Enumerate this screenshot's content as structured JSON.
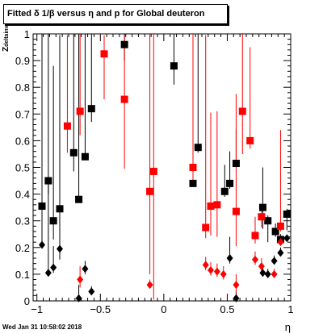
{
  "chart_data": {
    "type": "scatter",
    "title": "Fitted δ 1/β versus η and p for Global deuteron",
    "xlabel": "η",
    "ylabel": "Z",
    "ylabel_sub": "deltainv",
    "xlim": [
      -1.03,
      1.0
    ],
    "ylim": [
      0,
      1
    ],
    "xticks": [
      -1,
      -0.5,
      0,
      0.5,
      1
    ],
    "xtick_labels": [
      "−1",
      "−0.5",
      "0",
      "0.5",
      "1"
    ],
    "yticks": [
      0,
      0.1,
      0.2,
      0.3,
      0.4,
      0.5,
      0.6,
      0.7,
      0.8,
      0.9,
      1
    ],
    "ytick_labels": [
      "0",
      "0.1",
      "0.2",
      "0.3",
      "0.4",
      "0.5",
      "0.6",
      "0.7",
      "0.8",
      "0.9",
      "1"
    ],
    "grid": false,
    "series": [
      {
        "marker": "square",
        "color": "#000000",
        "points": [
          {
            "x": -0.96,
            "y": 0.355,
            "elo": 0.01,
            "ehi": 0.99
          },
          {
            "x": -0.91,
            "y": 0.45,
            "elo": 0.05,
            "ehi": 0.95
          },
          {
            "x": -0.87,
            "y": 0.3,
            "elo": 0.07,
            "ehi": 0.58
          },
          {
            "x": -0.82,
            "y": 0.345,
            "elo": 0.11,
            "ehi": 0.65
          },
          {
            "x": -0.71,
            "y": 0.555,
            "elo": 0.07,
            "ehi": 0.45
          },
          {
            "x": -0.67,
            "y": 0.38,
            "elo": 0.0,
            "ehi": 0.62
          },
          {
            "x": -0.62,
            "y": 0.54,
            "elo": 0.01,
            "ehi": 0.46
          },
          {
            "x": -0.57,
            "y": 0.72,
            "elo": 0.05,
            "ehi": 0.28
          },
          {
            "x": -0.31,
            "y": 0.96,
            "elo": 0.06,
            "ehi": 0.04
          },
          {
            "x": 0.08,
            "y": 0.88,
            "elo": 0.07,
            "ehi": 0.12
          },
          {
            "x": 0.23,
            "y": 0.44,
            "elo": 0.0,
            "ehi": 0.56
          },
          {
            "x": 0.27,
            "y": 0.575,
            "elo": 0.02,
            "ehi": 0.43
          },
          {
            "x": 0.48,
            "y": 0.41,
            "elo": 0.02,
            "ehi": 0.1
          },
          {
            "x": 0.52,
            "y": 0.44,
            "elo": 0.02,
            "ehi": 0.12
          },
          {
            "x": 0.57,
            "y": 0.515,
            "elo": 0.0,
            "ehi": 0.13
          },
          {
            "x": 0.78,
            "y": 0.35,
            "elo": 0.08,
            "ehi": 0.15
          },
          {
            "x": 0.82,
            "y": 0.3,
            "elo": 0.08,
            "ehi": 0.02
          },
          {
            "x": 0.88,
            "y": 0.26,
            "elo": 0.02,
            "ehi": 0.03
          },
          {
            "x": 0.92,
            "y": 0.23,
            "elo": 0.01,
            "ehi": 0.02
          },
          {
            "x": 0.97,
            "y": 0.325,
            "elo": 0.06,
            "ehi": 0.02
          }
        ]
      },
      {
        "marker": "square",
        "color": "#ff0000",
        "points": [
          {
            "x": -0.76,
            "y": 0.655,
            "elo": 0.1,
            "ehi": 0.34
          },
          {
            "x": -0.66,
            "y": 0.71,
            "elo": 0.09,
            "ehi": 0.29
          },
          {
            "x": -0.47,
            "y": 0.925,
            "elo": 0.17,
            "ehi": 0.07
          },
          {
            "x": -0.31,
            "y": 0.755,
            "elo": 0.26,
            "ehi": 0.24
          },
          {
            "x": -0.11,
            "y": 0.41,
            "elo": 0.31,
            "ehi": 0.59
          },
          {
            "x": -0.08,
            "y": 0.485,
            "elo": 0.48,
            "ehi": 0.52
          },
          {
            "x": 0.23,
            "y": 0.5,
            "elo": 0.05,
            "ehi": 0.5
          },
          {
            "x": 0.33,
            "y": 0.275,
            "elo": 0.04,
            "ehi": 0.72
          },
          {
            "x": 0.37,
            "y": 0.355,
            "elo": 0.11,
            "ehi": 0.35
          },
          {
            "x": 0.42,
            "y": 0.36,
            "elo": 0.12,
            "ehi": 0.35
          },
          {
            "x": 0.57,
            "y": 0.335,
            "elo": 0.13,
            "ehi": 0.44
          },
          {
            "x": 0.62,
            "y": 0.71,
            "elo": 0.16,
            "ehi": 0.29
          },
          {
            "x": 0.68,
            "y": 0.6,
            "elo": 0.03,
            "ehi": 0.35
          },
          {
            "x": 0.72,
            "y": 0.245,
            "elo": 0.03,
            "ehi": 0.07
          },
          {
            "x": 0.77,
            "y": 0.315,
            "elo": 0.04,
            "ehi": 0.03
          },
          {
            "x": 0.92,
            "y": 0.28,
            "elo": 0.02,
            "ehi": 0.36
          }
        ]
      },
      {
        "marker": "diamond",
        "color": "#000000",
        "points": [
          {
            "x": -0.96,
            "y": 0.21,
            "elo": 0.01,
            "ehi": 0.79
          },
          {
            "x": -0.91,
            "y": 0.105,
            "elo": 0.01,
            "ehi": 0.34
          },
          {
            "x": -0.87,
            "y": 0.125,
            "elo": 0.02,
            "ehi": 0.08
          },
          {
            "x": -0.82,
            "y": 0.195,
            "elo": 0.04,
            "ehi": 0.14
          },
          {
            "x": -0.67,
            "y": 0.01,
            "elo": 0.01,
            "ehi": 0.05
          },
          {
            "x": -0.62,
            "y": 0.12,
            "elo": 0.02,
            "ehi": 0.03
          },
          {
            "x": -0.57,
            "y": 0.035,
            "elo": 0.01,
            "ehi": 0.02
          },
          {
            "x": 0.52,
            "y": 0.16,
            "elo": 0.02,
            "ehi": 0.08
          },
          {
            "x": 0.57,
            "y": 0.01,
            "elo": 0.01,
            "ehi": 0.03
          },
          {
            "x": 0.78,
            "y": 0.105,
            "elo": 0.01,
            "ehi": 0.02
          },
          {
            "x": 0.82,
            "y": 0.1,
            "elo": 0.01,
            "ehi": 0.02
          },
          {
            "x": 0.87,
            "y": 0.15,
            "elo": 0.01,
            "ehi": 0.02
          },
          {
            "x": 0.92,
            "y": 0.18,
            "elo": 0.01,
            "ehi": 0.02
          },
          {
            "x": 0.97,
            "y": 0.235,
            "elo": 0.01,
            "ehi": 0.01
          }
        ]
      },
      {
        "marker": "diamond",
        "color": "#ff0000",
        "points": [
          {
            "x": -0.66,
            "y": 0.08,
            "elo": 0.03,
            "ehi": 0.05
          },
          {
            "x": -0.11,
            "y": 0.06,
            "elo": 0.01,
            "ehi": 0.02
          },
          {
            "x": 0.33,
            "y": 0.135,
            "elo": 0.02,
            "ehi": 0.03
          },
          {
            "x": 0.37,
            "y": 0.115,
            "elo": 0.02,
            "ehi": 0.03
          },
          {
            "x": 0.42,
            "y": 0.11,
            "elo": 0.02,
            "ehi": 0.03
          },
          {
            "x": 0.47,
            "y": 0.1,
            "elo": 0.02,
            "ehi": 0.03
          },
          {
            "x": 0.57,
            "y": 0.06,
            "elo": 0.03,
            "ehi": 0.04
          },
          {
            "x": 0.72,
            "y": 0.155,
            "elo": 0.02,
            "ehi": 0.03
          },
          {
            "x": 0.77,
            "y": 0.13,
            "elo": 0.02,
            "ehi": 0.03
          },
          {
            "x": 0.87,
            "y": 0.1,
            "elo": 0.01,
            "ehi": 0.02
          },
          {
            "x": 0.92,
            "y": 0.22,
            "elo": 0.01,
            "ehi": 0.02
          }
        ]
      }
    ]
  },
  "footer": {
    "datestamp": "Wed Jan 31 10:58:02 2018"
  }
}
